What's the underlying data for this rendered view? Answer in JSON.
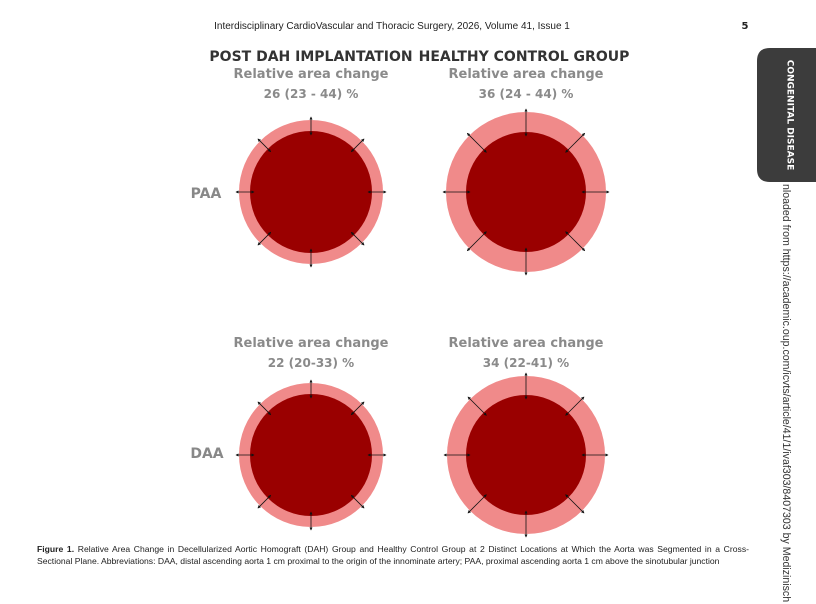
{
  "header": {
    "running_title": "Interdisciplinary CardioVascular and Thoracic Surgery, 2026, Volume 41, Issue 1",
    "page_number": "5"
  },
  "side_tab": "CONGENITAL DISEASE",
  "download_note": "nloaded from https://academic.oup.com/icvts/article/41/1/ivaf303/8407303 by Medizinisch",
  "figure": {
    "column_titles": [
      "POST DAH IMPLANTATION",
      "HEALTHY CONTROL GROUP"
    ],
    "row_labels": [
      "PAA",
      "DAA"
    ],
    "panels": [
      {
        "label": "Relative area change",
        "value": "26 (23 - 44) %"
      },
      {
        "label": "Relative area change",
        "value": "36 (24 - 44) %"
      },
      {
        "label": "Relative area change",
        "value": "22 (20-33) %"
      },
      {
        "label": "Relative area change",
        "value": "34 (22-41) %"
      }
    ]
  },
  "caption": {
    "label": "Figure 1.",
    "text": "Relative Area Change in Decellularized Aortic Homograft (DAH) Group and Healthy Control Group at 2 Distinct Locations at Which the Aorta was Segmented in a Cross-Sectional Plane. Abbreviations: DAA, distal ascending aorta 1 cm proximal to the origin of the innominate artery; PAA, proximal ascending aorta 1 cm above the sinotubular junction"
  }
}
